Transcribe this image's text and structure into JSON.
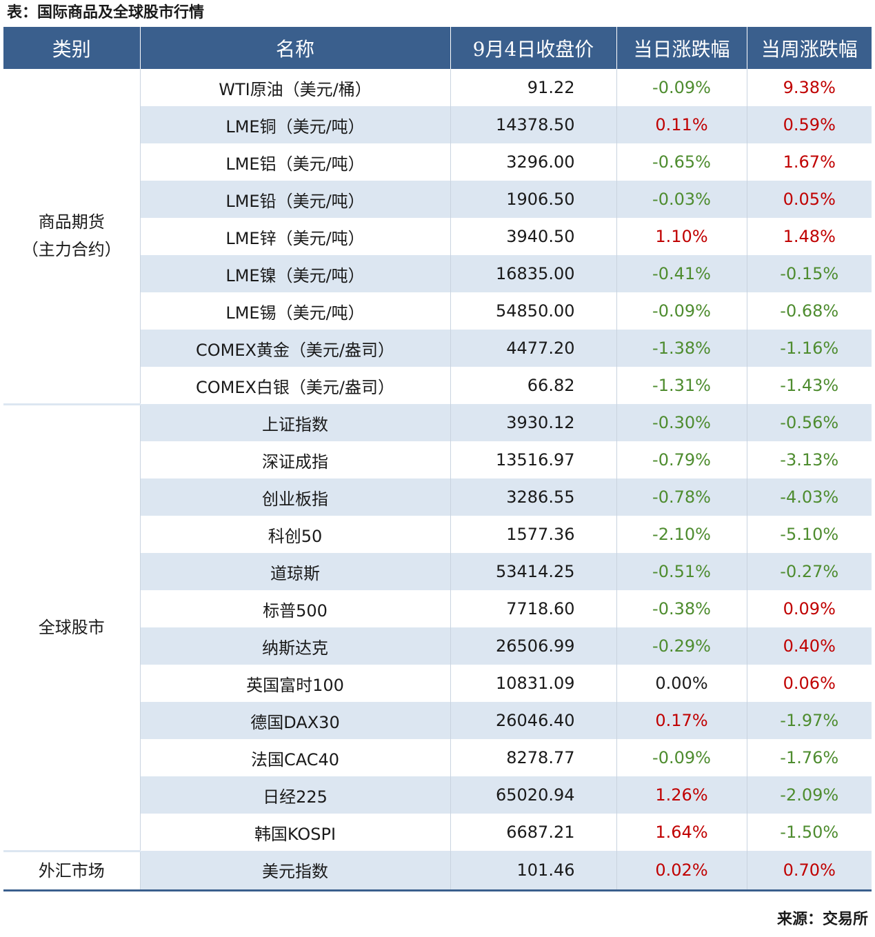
{
  "caption": "表：国际商品及全球股市行情",
  "source": "来源：交易所",
  "headers": [
    "类别",
    "名称",
    "9月4日收盘价",
    "当日涨跌幅",
    "当周涨跌幅"
  ],
  "colors": {
    "header_bg": "#3a5f8d",
    "stripe": "#dce6f1",
    "up": "#c00000",
    "down": "#4e8c2f"
  },
  "groups": [
    {
      "category_line1": "商品期货",
      "category_line2": "（主力合约）",
      "rows": [
        {
          "name": "WTI原油（美元/桶）",
          "close": "91.22",
          "day": "-0.09%",
          "week": "9.38%"
        },
        {
          "name": "LME铜（美元/吨）",
          "close": "14378.50",
          "day": "0.11%",
          "week": "0.59%"
        },
        {
          "name": "LME铝（美元/吨）",
          "close": "3296.00",
          "day": "-0.65%",
          "week": "1.67%"
        },
        {
          "name": "LME铅（美元/吨）",
          "close": "1906.50",
          "day": "-0.03%",
          "week": "0.05%"
        },
        {
          "name": "LME锌（美元/吨）",
          "close": "3940.50",
          "day": "1.10%",
          "week": "1.48%"
        },
        {
          "name": "LME镍（美元/吨）",
          "close": "16835.00",
          "day": "-0.41%",
          "week": "-0.15%"
        },
        {
          "name": "LME锡（美元/吨）",
          "close": "54850.00",
          "day": "-0.09%",
          "week": "-0.68%"
        },
        {
          "name": "COMEX黄金（美元/盎司）",
          "close": "4477.20",
          "day": "-1.38%",
          "week": "-1.16%"
        },
        {
          "name": "COMEX白银（美元/盎司）",
          "close": "66.82",
          "day": "-1.31%",
          "week": "-1.43%"
        }
      ]
    },
    {
      "category_line1": "全球股市",
      "category_line2": "",
      "rows": [
        {
          "name": "上证指数",
          "close": "3930.12",
          "day": "-0.30%",
          "week": "-0.56%"
        },
        {
          "name": "深证成指",
          "close": "13516.97",
          "day": "-0.79%",
          "week": "-3.13%"
        },
        {
          "name": "创业板指",
          "close": "3286.55",
          "day": "-0.78%",
          "week": "-4.03%"
        },
        {
          "name": "科创50",
          "close": "1577.36",
          "day": "-2.10%",
          "week": "-5.10%"
        },
        {
          "name": "道琼斯",
          "close": "53414.25",
          "day": "-0.51%",
          "week": "-0.27%"
        },
        {
          "name": "标普500",
          "close": "7718.60",
          "day": "-0.38%",
          "week": "0.09%"
        },
        {
          "name": "纳斯达克",
          "close": "26506.99",
          "day": "-0.29%",
          "week": "0.40%"
        },
        {
          "name": "英国富时100",
          "close": "10831.09",
          "day": "0.00%",
          "week": "0.06%"
        },
        {
          "name": "德国DAX30",
          "close": "26046.40",
          "day": "0.17%",
          "week": "-1.97%"
        },
        {
          "name": "法国CAC40",
          "close": "8278.77",
          "day": "-0.09%",
          "week": "-1.76%"
        },
        {
          "name": "日经225",
          "close": "65020.94",
          "day": "1.26%",
          "week": "-2.09%"
        },
        {
          "name": "韩国KOSPI",
          "close": "6687.21",
          "day": "1.64%",
          "week": "-1.50%"
        }
      ]
    },
    {
      "category_line1": "外汇市场",
      "category_line2": "",
      "rows": [
        {
          "name": "美元指数",
          "close": "101.46",
          "day": "0.02%",
          "week": "0.70%"
        }
      ]
    }
  ]
}
